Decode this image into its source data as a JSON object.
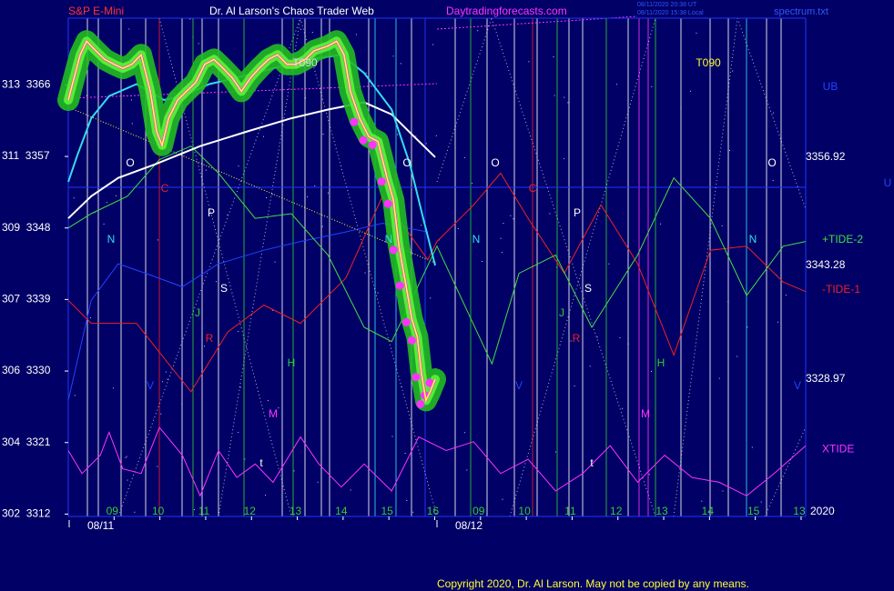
{
  "chart_data": {
    "type": "line",
    "title": "Dr. Al Larson's Chaos Trader Web",
    "subtitle": "S&P E-Mini",
    "source": "Daytradingforecasts.com",
    "file": "spectrum.txt",
    "timestamps": [
      "08/11/2020 20:38 UT",
      "08/11/2020 15:38 Local"
    ],
    "copyright": "Copyright 2020, Dr. Al Larson. May not be copied by any means.",
    "year": "2020",
    "dates": [
      "08/11",
      "08/12"
    ],
    "xlim": [
      0,
      16.1
    ],
    "xticks": [
      {
        "value": 1,
        "label": "09"
      },
      {
        "value": 2,
        "label": "10"
      },
      {
        "value": 3,
        "label": "11"
      },
      {
        "value": 4,
        "label": "12"
      },
      {
        "value": 5,
        "label": "13"
      },
      {
        "value": 6,
        "label": "14"
      },
      {
        "value": 7,
        "label": "15"
      },
      {
        "value": 8,
        "label": "16"
      },
      {
        "value": 9,
        "label": "09"
      },
      {
        "value": 10,
        "label": "10"
      },
      {
        "value": 11,
        "label": "11"
      },
      {
        "value": 12,
        "label": "12"
      },
      {
        "value": 13,
        "label": "13"
      },
      {
        "value": 14,
        "label": "14"
      },
      {
        "value": 15,
        "label": "15"
      },
      {
        "value": 16,
        "label": "13"
      }
    ],
    "ylim": [
      3311.7,
      3374.4
    ],
    "yticks": [
      {
        "value": 3312,
        "label": "302  3312"
      },
      {
        "value": 3321,
        "label": "304  3321"
      },
      {
        "value": 3330,
        "label": "306  3330"
      },
      {
        "value": 3339,
        "label": "307  3339"
      },
      {
        "value": 3348,
        "label": "309  3348"
      },
      {
        "value": 3357,
        "label": "311  3357"
      },
      {
        "value": 3366,
        "label": "313  3366"
      }
    ],
    "annotations": [
      "O",
      "C",
      "P",
      "N",
      "S",
      "J",
      "R",
      "H",
      "M",
      "t",
      "V",
      "N",
      "O",
      "O",
      "C",
      "P",
      "N",
      "S",
      "J",
      "R",
      "H",
      "M",
      "t",
      "V",
      "N",
      "O",
      "V",
      "T090",
      "T090",
      "UB",
      "U"
    ],
    "series": [
      {
        "name": "XTIDE",
        "color": "#ff33ff",
        "x": [
          0,
          0.3,
          0.7,
          0.89,
          1.19,
          1.59,
          1.99,
          2.49,
          2.88,
          3.28,
          3.68,
          4.08,
          4.47,
          5.07,
          5.47,
          5.96,
          6.46,
          7.06,
          7.65,
          8.25,
          8.85,
          9.44,
          10.04,
          10.64,
          11.23,
          11.83,
          12.43,
          13.02,
          13.62,
          14.21,
          14.81,
          15.41,
          16.1
        ],
        "values": [
          3320.0,
          3317.1,
          3319.4,
          3322.3,
          3317.7,
          3317.1,
          3322.9,
          3319.4,
          3314.3,
          3320.0,
          3316.6,
          3318.3,
          3316.0,
          3321.7,
          3318.3,
          3315.4,
          3318.3,
          3314.9,
          3321.7,
          3320.0,
          3321.1,
          3317.1,
          3318.9,
          3314.9,
          3317.1,
          3320.6,
          3316.0,
          3319.4,
          3316.6,
          3316.0,
          3314.3,
          3317.1,
          3320.6
        ]
      },
      {
        "color": "#2244ff",
        "x": [
          0,
          0.5,
          1.09,
          1.69,
          2.49,
          3.28,
          4.27,
          5.07,
          6.06,
          6.86,
          7.85
        ],
        "values": [
          3326.3,
          3338.9,
          3343.5,
          3342.3,
          3340.6,
          3343.5,
          3345.2,
          3346.3,
          3347.5,
          3348.6,
          3347.5
        ]
      },
      {
        "name": "-TIDE-1",
        "color": "#ee2222",
        "x": [
          0,
          0.5,
          1.49,
          2.19,
          2.68,
          3.48,
          4.27,
          5.07,
          6.06,
          6.86,
          7.85,
          8.05,
          8.85,
          9.44,
          10.04,
          10.83,
          11.63,
          12.43,
          13.22,
          14.02,
          14.81,
          15.61,
          16.1
        ],
        "values": [
          3338.9,
          3336.0,
          3336.0,
          3330.9,
          3327.4,
          3334.9,
          3338.3,
          3336.0,
          3341.7,
          3352.0,
          3344.0,
          3346.3,
          3350.9,
          3354.9,
          3349.2,
          3342.3,
          3350.9,
          3343.5,
          3332.0,
          3345.2,
          3345.7,
          3341.2,
          3340.0
        ]
      },
      {
        "name": "+TIDE-2",
        "color": "#44dd44",
        "x": [
          0,
          0.5,
          1.29,
          1.99,
          2.68,
          3.28,
          4.08,
          4.87,
          5.67,
          6.46,
          7.06,
          8.05,
          9.25,
          9.84,
          10.64,
          11.43,
          12.43,
          13.22,
          14.02,
          14.81,
          15.61,
          16.1
        ],
        "values": [
          3348.0,
          3349.8,
          3352.0,
          3356.6,
          3358.3,
          3354.9,
          3349.2,
          3349.8,
          3344.6,
          3335.5,
          3333.7,
          3345.7,
          3330.9,
          3342.3,
          3344.6,
          3335.5,
          3344.6,
          3354.3,
          3349.2,
          3339.5,
          3345.7,
          3346.3
        ]
      },
      {
        "color": "#ffffff",
        "end_label": "3356.92",
        "x": [
          0,
          0.5,
          1.09,
          1.89,
          2.88,
          3.88,
          4.87,
          5.67,
          6.46,
          7.06,
          7.55,
          8.01
        ],
        "values": [
          3349.2,
          3352.0,
          3354.3,
          3356.0,
          3358.3,
          3360.1,
          3361.8,
          3362.9,
          3363.8,
          3362.3,
          3359.5,
          3356.92
        ]
      },
      {
        "color": "#33ddee",
        "end_label": "3343.28",
        "x": [
          0,
          0.2,
          0.5,
          0.89,
          1.49,
          2.09,
          2.49,
          3.08,
          3.68,
          4.47,
          5.27,
          5.96,
          6.46,
          7.06,
          7.46,
          7.75,
          8.01
        ],
        "values": [
          3353.8,
          3357.2,
          3361.8,
          3364.6,
          3366.1,
          3364.1,
          3364.6,
          3366.1,
          3366.9,
          3368.1,
          3369.2,
          3369.8,
          3367.5,
          3362.9,
          3356.0,
          3349.2,
          3343.28
        ]
      },
      {
        "color": "#ffff33",
        "end_label": "3328.97",
        "halo": "#22bb22",
        "x": [
          0,
          0.1,
          0.26,
          0.4,
          0.6,
          0.8,
          1.0,
          1.19,
          1.39,
          1.59,
          1.79,
          1.93,
          2.05,
          2.19,
          2.39,
          2.58,
          2.78,
          2.98,
          3.18,
          3.38,
          3.58,
          3.78,
          3.98,
          4.17,
          4.37,
          4.57,
          4.77,
          4.97,
          5.17,
          5.37,
          5.67,
          5.86,
          6.02,
          6.16,
          6.36,
          6.56,
          6.76,
          6.96,
          7.1,
          7.22,
          7.36,
          7.5,
          7.62,
          7.71,
          7.81,
          7.9,
          8.01
        ],
        "values": [
          3364.1,
          3366.3,
          3369.8,
          3371.5,
          3370.3,
          3369.2,
          3368.6,
          3368.1,
          3368.6,
          3369.8,
          3365.2,
          3360.1,
          3358.4,
          3361.8,
          3364.1,
          3365.2,
          3366.3,
          3368.6,
          3369.2,
          3368.1,
          3366.9,
          3365.2,
          3366.9,
          3368.1,
          3369.2,
          3369.8,
          3368.6,
          3368.6,
          3369.2,
          3370.3,
          3370.9,
          3371.5,
          3369.8,
          3365.2,
          3361.8,
          3359.5,
          3358.9,
          3354.3,
          3351.5,
          3345.7,
          3341.2,
          3336.6,
          3334.3,
          3329.7,
          3326.3,
          3327.4,
          3328.97
        ]
      }
    ]
  }
}
